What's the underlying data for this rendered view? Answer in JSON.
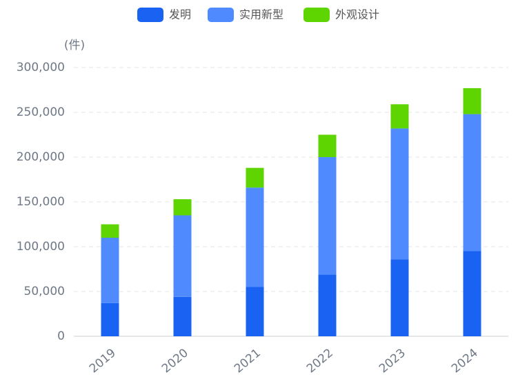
{
  "chart_data": {
    "type": "stacked-bar",
    "y_label": "(件)",
    "categories": [
      "2019",
      "2020",
      "2021",
      "2022",
      "2023",
      "2024"
    ],
    "series": [
      {
        "name": "发明",
        "color": "#1a63f2",
        "values": [
          37000,
          44000,
          55000,
          69000,
          86000,
          95000
        ]
      },
      {
        "name": "实用新型",
        "color": "#4f8bff",
        "values": [
          73000,
          91000,
          111000,
          131000,
          146000,
          153000
        ]
      },
      {
        "name": "外观设计",
        "color": "#5ed500",
        "values": [
          15000,
          18000,
          22000,
          25000,
          27000,
          29000
        ]
      }
    ],
    "ylim": [
      0,
      300000
    ],
    "yticks": [
      0,
      {
        "value": 50000,
        "label": "50,000"
      },
      {
        "value": 100000,
        "label": "100,000"
      },
      {
        "value": 150000,
        "label": "150,000"
      },
      {
        "value": 200000,
        "label": "200,000"
      },
      {
        "value": 250000,
        "label": "250,000"
      },
      {
        "value": 300000,
        "label": "300,000"
      }
    ],
    "grid": true,
    "legend": "top"
  }
}
